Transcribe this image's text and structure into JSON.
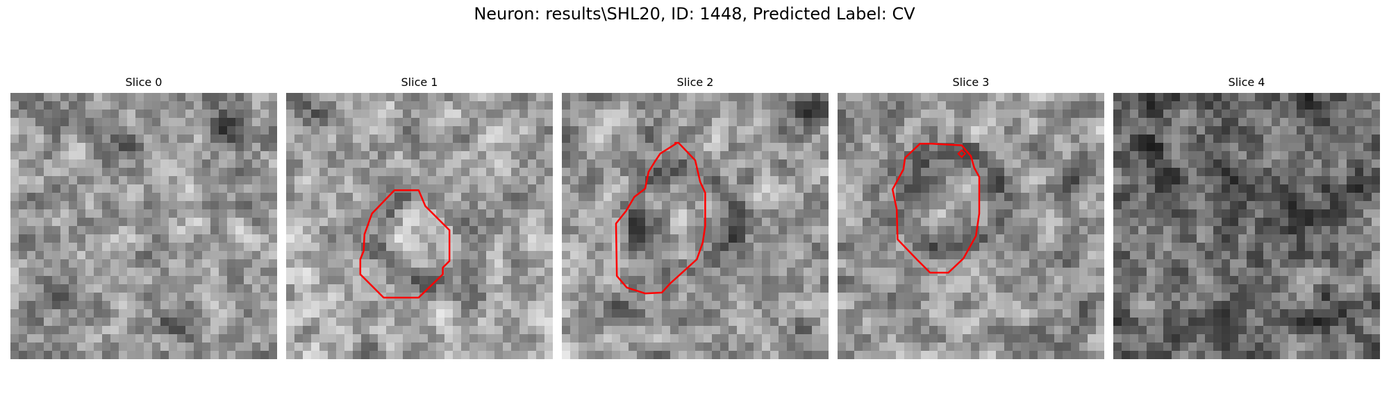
{
  "figure": {
    "title": "Neuron: results\\SHL20, ID: 1448, Predicted Label: CV"
  },
  "colors": {
    "contour": "#ff0000",
    "background": "#ffffff",
    "image_colormap": "grayscale"
  },
  "panels": [
    {
      "title": "Slice 0",
      "has_contour": false,
      "seed": 11
    },
    {
      "title": "Slice 1",
      "has_contour": true,
      "seed": 23
    },
    {
      "title": "Slice 2",
      "has_contour": true,
      "seed": 37
    },
    {
      "title": "Slice 3",
      "has_contour": true,
      "seed": 51
    },
    {
      "title": "Slice 4",
      "has_contour": false,
      "seed": 67
    }
  ]
}
